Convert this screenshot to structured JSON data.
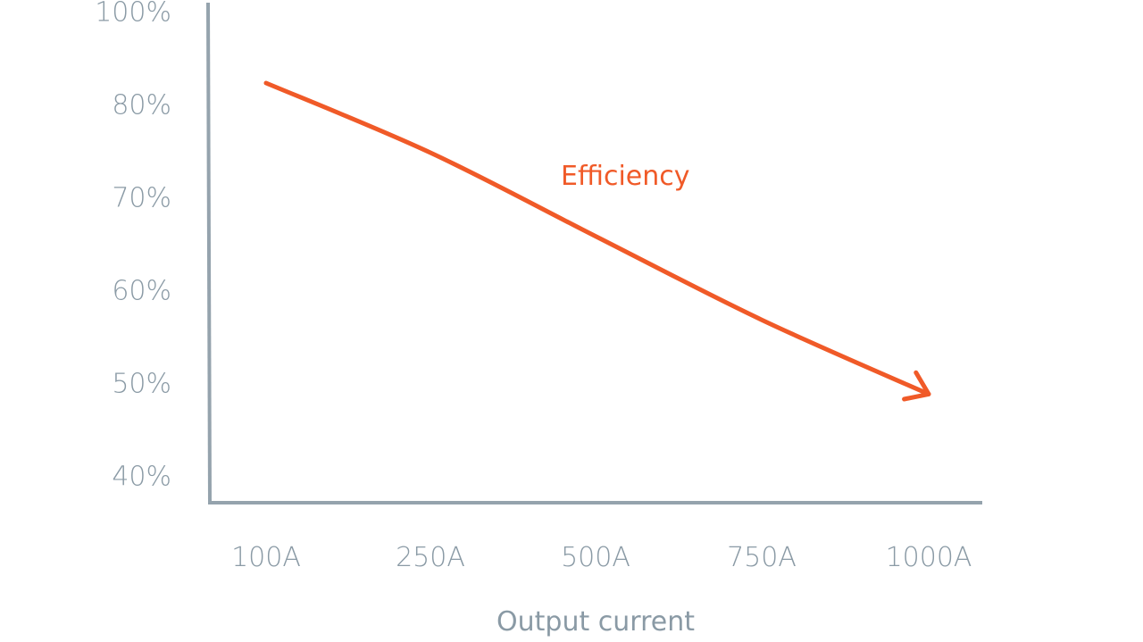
{
  "chart_data": {
    "type": "line",
    "xlabel": "Output current",
    "ylabel": "",
    "x_ticks": [
      "100A",
      "250A",
      "500A",
      "750A",
      "1000A"
    ],
    "y_ticks": [
      "100%",
      "80%",
      "70%",
      "60%",
      "50%",
      "40%"
    ],
    "series": [
      {
        "name": "Efficiency",
        "x": [
          "100A",
          "250A",
          "500A",
          "750A",
          "1000A"
        ],
        "values": [
          85,
          75,
          66,
          57,
          49
        ]
      }
    ],
    "arrow_at_end": true,
    "grid": false
  },
  "colors": {
    "axis": "#95a3ad",
    "tick_text": "#8a9aa5",
    "series": "#f05a28"
  }
}
